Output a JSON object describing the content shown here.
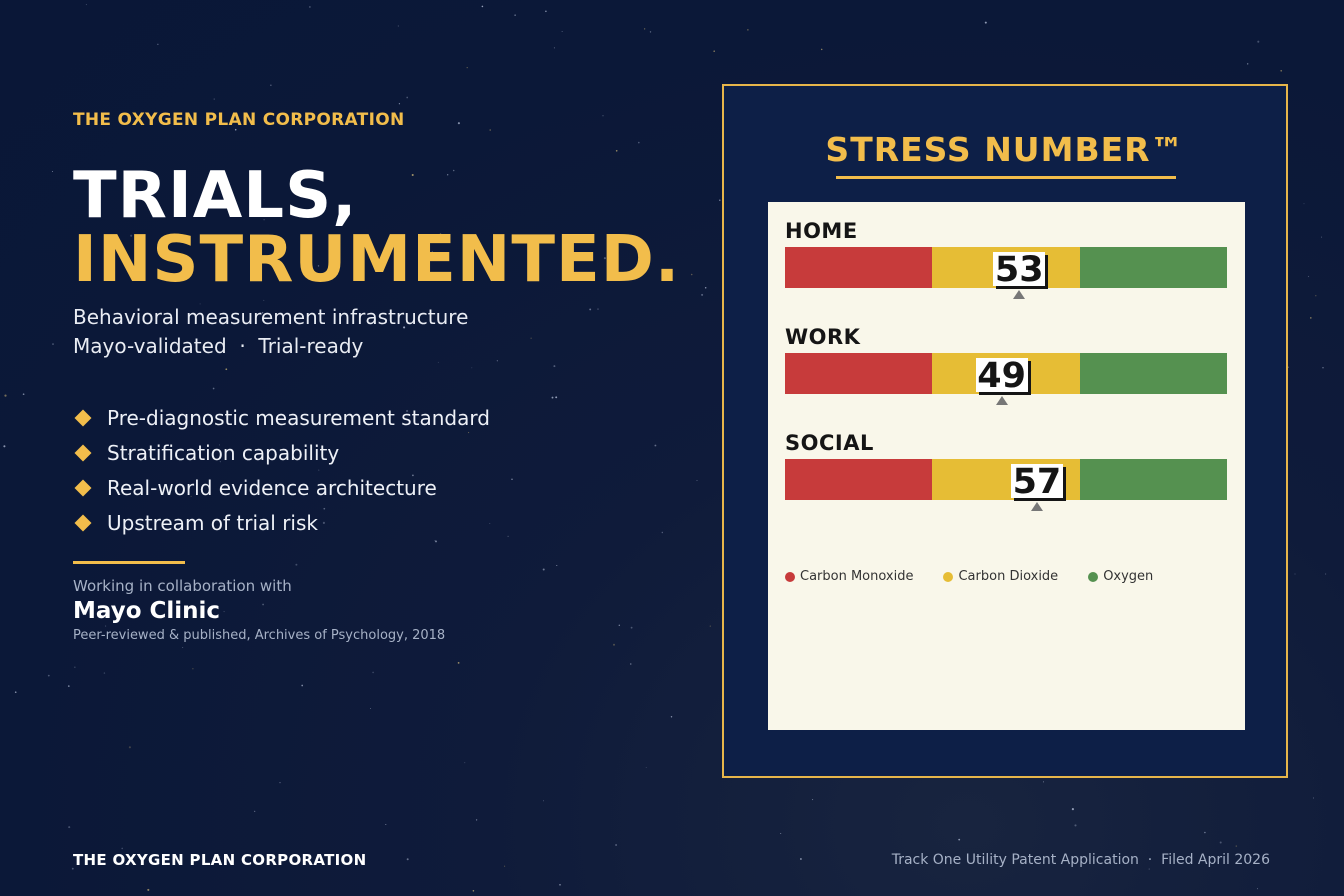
{
  "brand": {
    "company": "THE OXYGEN PLAN CORPORATION",
    "accent_color": "#f2bd4b",
    "background_color": "#0b1838"
  },
  "hero": {
    "headline_line1": "TRIALS,",
    "headline_line2": "INSTRUMENTED.",
    "subtitle_line1": "Behavioral measurement infrastructure",
    "subtitle_line2": "Mayo-validated  ·  Trial-ready"
  },
  "bullets": [
    "Pre-diagnostic measurement standard",
    "Stratification capability",
    "Real-world evidence architecture",
    "Upstream of trial risk"
  ],
  "collaboration": {
    "intro": "Working in collaboration with",
    "partner": "Mayo Clinic",
    "publication": "Peer-reviewed & published, Archives of Psychology, 2018"
  },
  "panel": {
    "title": "STRESS NUMBER™",
    "scale_min": 0,
    "scale_max": 100,
    "gauges": [
      {
        "label": "HOME",
        "value": 53
      },
      {
        "label": "WORK",
        "value": 49
      },
      {
        "label": "SOCIAL",
        "value": 57
      }
    ],
    "zones": [
      {
        "name": "Carbon Monoxide",
        "color": "#c73b3b"
      },
      {
        "name": "Carbon Dioxide",
        "color": "#e6bd35"
      },
      {
        "name": "Oxygen",
        "color": "#559150"
      }
    ]
  },
  "footer": {
    "left": "THE OXYGEN PLAN CORPORATION",
    "right": "Track One Utility Patent Application  ·  Filed April 2026"
  }
}
